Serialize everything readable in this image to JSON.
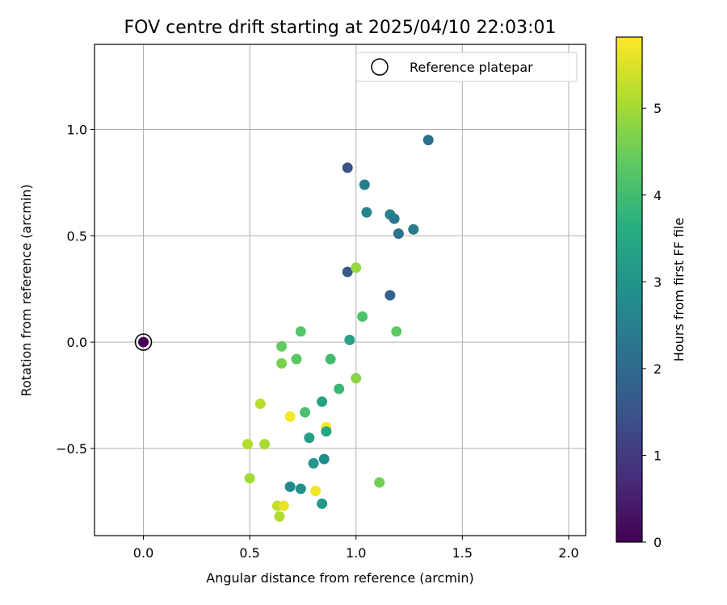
{
  "chart_data": {
    "type": "scatter",
    "title": "FOV centre drift starting at 2025/04/10 22:03:01",
    "xlabel": "Angular distance from reference (arcmin)",
    "ylabel": "Rotation from reference (arcmin)",
    "xlim": [
      -0.23,
      2.08
    ],
    "ylim": [
      -0.91,
      1.4
    ],
    "xticks": [
      0.0,
      0.5,
      1.0,
      1.5,
      2.0
    ],
    "xtick_labels": [
      "0.0",
      "0.5",
      "1.0",
      "1.5",
      "2.0"
    ],
    "yticks": [
      -0.5,
      0.0,
      0.5,
      1.0
    ],
    "ytick_labels": [
      "−0.5",
      "0.0",
      "0.5",
      "1.0"
    ],
    "grid": true,
    "legend": {
      "position": "top-right",
      "label": "Reference platepar"
    },
    "colorbar": {
      "label": "Hours from first FF file",
      "colormap": "viridis",
      "range": [
        0,
        5.82
      ],
      "ticks": [
        0,
        1,
        2,
        3,
        4,
        5
      ],
      "tick_labels": [
        "0",
        "1",
        "2",
        "3",
        "4",
        "5"
      ]
    },
    "reference_point": {
      "x": 0.0,
      "y": 0.0
    },
    "points": [
      {
        "x": 0.0,
        "y": 0.0,
        "hours": 0.0
      },
      {
        "x": 1.34,
        "y": 0.95,
        "hours": 2.1
      },
      {
        "x": 0.96,
        "y": 0.82,
        "hours": 1.5
      },
      {
        "x": 1.04,
        "y": 0.74,
        "hours": 2.45
      },
      {
        "x": 1.05,
        "y": 0.61,
        "hours": 2.6
      },
      {
        "x": 1.16,
        "y": 0.6,
        "hours": 2.55
      },
      {
        "x": 1.18,
        "y": 0.58,
        "hours": 2.3
      },
      {
        "x": 1.2,
        "y": 0.51,
        "hours": 2.15
      },
      {
        "x": 1.27,
        "y": 0.53,
        "hours": 2.4
      },
      {
        "x": 0.96,
        "y": 0.33,
        "hours": 1.6
      },
      {
        "x": 1.16,
        "y": 0.22,
        "hours": 1.8
      },
      {
        "x": 1.0,
        "y": 0.35,
        "hours": 4.9
      },
      {
        "x": 1.03,
        "y": 0.12,
        "hours": 4.15
      },
      {
        "x": 1.19,
        "y": 0.05,
        "hours": 4.35
      },
      {
        "x": 0.97,
        "y": 0.01,
        "hours": 3.3
      },
      {
        "x": 0.74,
        "y": 0.05,
        "hours": 4.25
      },
      {
        "x": 0.65,
        "y": -0.02,
        "hours": 4.4
      },
      {
        "x": 0.65,
        "y": -0.1,
        "hours": 4.6
      },
      {
        "x": 0.72,
        "y": -0.08,
        "hours": 4.3
      },
      {
        "x": 0.88,
        "y": -0.08,
        "hours": 4.0
      },
      {
        "x": 1.0,
        "y": -0.17,
        "hours": 4.75
      },
      {
        "x": 0.55,
        "y": -0.29,
        "hours": 5.2
      },
      {
        "x": 0.92,
        "y": -0.22,
        "hours": 3.9
      },
      {
        "x": 0.84,
        "y": -0.28,
        "hours": 3.35
      },
      {
        "x": 0.76,
        "y": -0.33,
        "hours": 4.1
      },
      {
        "x": 0.69,
        "y": -0.35,
        "hours": 5.75
      },
      {
        "x": 0.86,
        "y": -0.4,
        "hours": 5.8
      },
      {
        "x": 0.86,
        "y": -0.42,
        "hours": 3.45
      },
      {
        "x": 0.78,
        "y": -0.45,
        "hours": 3.2
      },
      {
        "x": 0.49,
        "y": -0.48,
        "hours": 5.15
      },
      {
        "x": 0.57,
        "y": -0.48,
        "hours": 5.05
      },
      {
        "x": 0.8,
        "y": -0.57,
        "hours": 3.0
      },
      {
        "x": 0.85,
        "y": -0.55,
        "hours": 2.85
      },
      {
        "x": 0.5,
        "y": -0.64,
        "hours": 5.0
      },
      {
        "x": 1.11,
        "y": -0.66,
        "hours": 4.55
      },
      {
        "x": 0.69,
        "y": -0.68,
        "hours": 2.75
      },
      {
        "x": 0.74,
        "y": -0.69,
        "hours": 2.9
      },
      {
        "x": 0.81,
        "y": -0.7,
        "hours": 5.7
      },
      {
        "x": 0.84,
        "y": -0.76,
        "hours": 3.1
      },
      {
        "x": 0.63,
        "y": -0.77,
        "hours": 5.25
      },
      {
        "x": 0.66,
        "y": -0.77,
        "hours": 5.65
      },
      {
        "x": 0.64,
        "y": -0.82,
        "hours": 5.1
      }
    ]
  }
}
